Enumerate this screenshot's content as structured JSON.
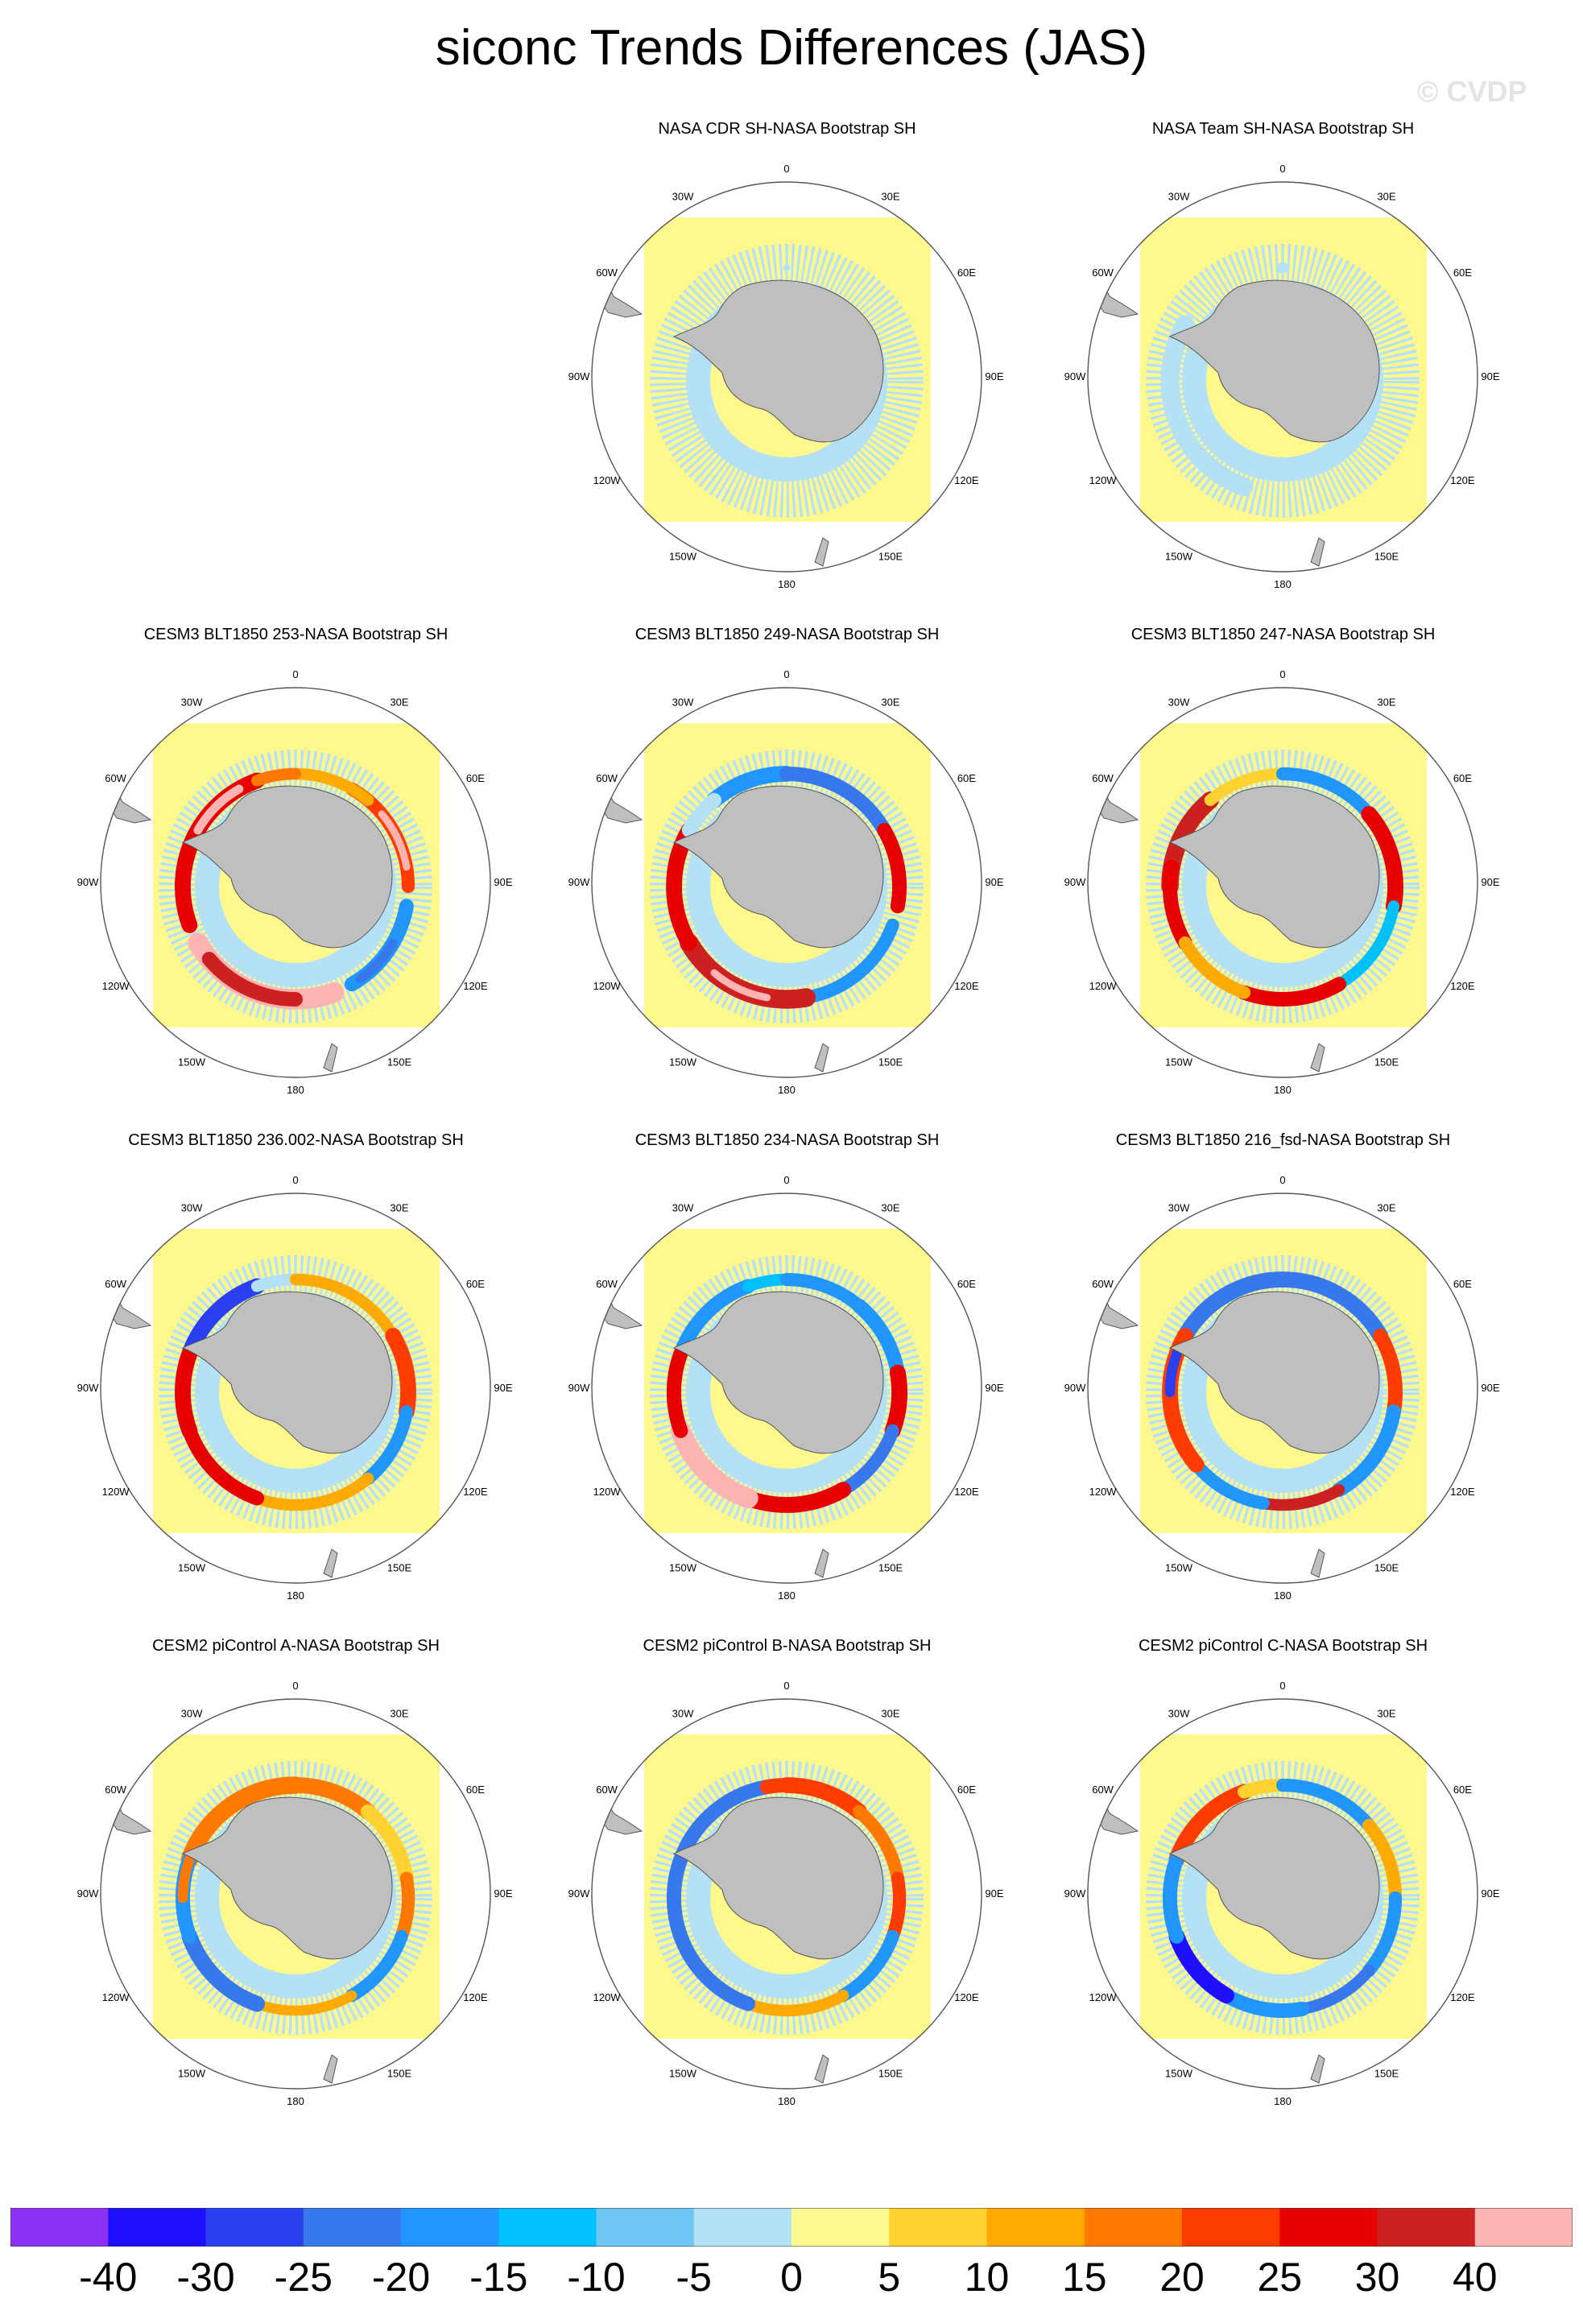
{
  "title": "siconc Trends Differences (JAS)",
  "watermark": "© CVDP",
  "longitude_labels": [
    "0",
    "30E",
    "60E",
    "90E",
    "120E",
    "150E",
    "180",
    "150W",
    "120W",
    "90W",
    "60W",
    "30W"
  ],
  "panels": [
    {
      "title": "NASA CDR SH-NASA Bootstrap SH",
      "pattern": "cdr",
      "row": 0,
      "col": 1
    },
    {
      "title": "NASA Team SH-NASA Bootstrap SH",
      "pattern": "team",
      "row": 0,
      "col": 2
    },
    {
      "title": "CESM3 BLT1850 253-NASA Bootstrap SH",
      "pattern": "m253",
      "row": 1,
      "col": 0
    },
    {
      "title": "CESM3 BLT1850 249-NASA Bootstrap SH",
      "pattern": "m249",
      "row": 1,
      "col": 1
    },
    {
      "title": "CESM3 BLT1850 247-NASA Bootstrap SH",
      "pattern": "m247",
      "row": 1,
      "col": 2
    },
    {
      "title": "CESM3 BLT1850 236.002-NASA Bootstrap SH",
      "pattern": "m236",
      "row": 2,
      "col": 0
    },
    {
      "title": "CESM3 BLT1850 234-NASA Bootstrap SH",
      "pattern": "m234",
      "row": 2,
      "col": 1
    },
    {
      "title": "CESM3 BLT1850 216_fsd-NASA Bootstrap SH",
      "pattern": "m216",
      "row": 2,
      "col": 2
    },
    {
      "title": "CESM2 piControl A-NASA Bootstrap SH",
      "pattern": "pa",
      "row": 3,
      "col": 0
    },
    {
      "title": "CESM2 piControl B-NASA Bootstrap SH",
      "pattern": "pb",
      "row": 3,
      "col": 1
    },
    {
      "title": "CESM2 piControl C-NASA Bootstrap SH",
      "pattern": "pc",
      "row": 3,
      "col": 2
    }
  ],
  "colorbar": {
    "labels": [
      "-40",
      "-30",
      "-25",
      "-20",
      "-15",
      "-10",
      "-5",
      "0",
      "5",
      "10",
      "15",
      "20",
      "25",
      "30",
      "40"
    ],
    "colors": [
      "#8c30f5",
      "#1e0fff",
      "#2a3ff0",
      "#3778ec",
      "#2196ff",
      "#00c0ff",
      "#6ec6f5",
      "#b4e1f5",
      "#fff88c",
      "#ffd232",
      "#ffaa00",
      "#ff7800",
      "#ff3c00",
      "#e60000",
      "#cd2020",
      "#ffb4b4"
    ]
  },
  "colors": {
    "land": "#bfbfbf",
    "background": "#fff88c"
  }
}
